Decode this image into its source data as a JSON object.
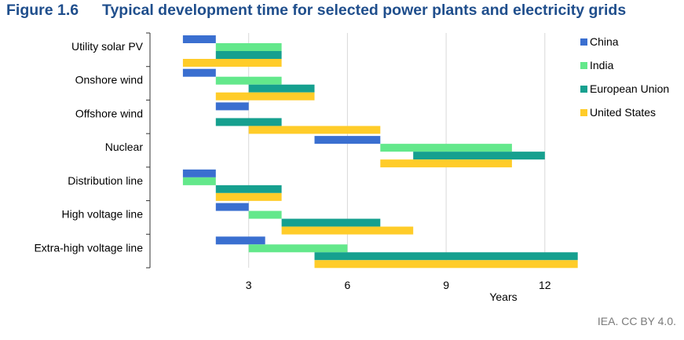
{
  "figure": {
    "number": "Figure 1.6",
    "title": "Typical development time for selected power plants and electricity grids",
    "credit": "IEA. CC BY 4.0."
  },
  "colors": {
    "China": "#3a6fd0",
    "India": "#63e88b",
    "European Union": "#16a08f",
    "United States": "#ffcc29",
    "header": "#1f4e8c",
    "grid": "#d9d9d9",
    "axis": "#333333"
  },
  "chart_data": {
    "type": "bar",
    "orientation": "horizontal-range",
    "title": "Typical development time for selected power plants and electricity grids",
    "xlabel": "Years",
    "ylabel": "",
    "xlim": [
      0,
      13.3
    ],
    "xticks": [
      3,
      6,
      9,
      12
    ],
    "grid": true,
    "legend_position": "right",
    "categories": [
      "Utility solar PV",
      "Onshore wind",
      "Offshore wind",
      "Nuclear",
      "Distribution line",
      "High voltage line",
      "Extra-high voltage line"
    ],
    "series": [
      {
        "name": "China",
        "ranges": [
          [
            1,
            2
          ],
          [
            1,
            2
          ],
          [
            2,
            3
          ],
          [
            5,
            7
          ],
          [
            1,
            2
          ],
          [
            2,
            3
          ],
          [
            2,
            3.5
          ]
        ]
      },
      {
        "name": "India",
        "ranges": [
          [
            2,
            4
          ],
          [
            2,
            4
          ],
          null,
          [
            7,
            11
          ],
          [
            1,
            2
          ],
          [
            3,
            4
          ],
          [
            3,
            6
          ]
        ]
      },
      {
        "name": "European Union",
        "ranges": [
          [
            2,
            4
          ],
          [
            3,
            5
          ],
          [
            2,
            4
          ],
          [
            8,
            12
          ],
          [
            2,
            4
          ],
          [
            4,
            7
          ],
          [
            5,
            13
          ]
        ]
      },
      {
        "name": "United States",
        "ranges": [
          [
            1,
            4
          ],
          [
            2,
            5
          ],
          [
            3,
            7
          ],
          [
            7,
            11
          ],
          [
            2,
            4
          ],
          [
            4,
            8
          ],
          [
            5,
            13
          ]
        ]
      }
    ]
  }
}
